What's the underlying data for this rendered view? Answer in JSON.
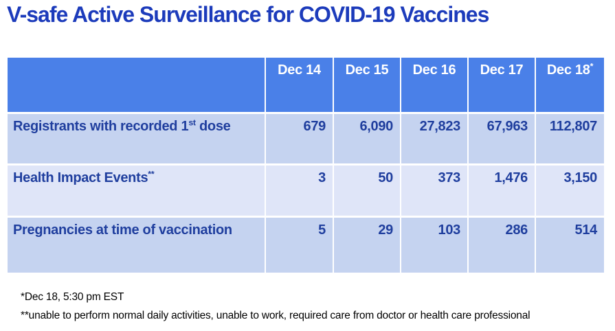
{
  "slide": {
    "title": "V-safe Active Surveillance for COVID-19 Vaccines"
  },
  "table": {
    "headers": [
      {
        "label": "Dec 14",
        "sup": ""
      },
      {
        "label": "Dec 15",
        "sup": ""
      },
      {
        "label": "Dec 16",
        "sup": ""
      },
      {
        "label": "Dec 17",
        "sup": ""
      },
      {
        "label": "Dec 18",
        "sup": "*"
      }
    ],
    "rows": [
      {
        "label": "Registrants with recorded 1",
        "label_sup": "st",
        "label_suffix": " dose",
        "values": [
          "679",
          "6,090",
          "27,823",
          "67,963",
          "112,807"
        ]
      },
      {
        "label": "Health Impact Events",
        "label_sup": "**",
        "label_suffix": "",
        "values": [
          "3",
          "50",
          "373",
          "1,476",
          "3,150"
        ]
      },
      {
        "label": "Pregnancies at time of vaccination",
        "label_sup": "",
        "label_suffix": "",
        "values": [
          "5",
          "29",
          "103",
          "286",
          "514"
        ]
      }
    ]
  },
  "footnotes": [
    "*Dec 18, 5:30 pm EST",
    "**unable to perform normal daily activities, unable to work, required care from doctor or health care professional"
  ],
  "colors": {
    "title_text": "#1c3bbb",
    "header_bg": "#4a80e8",
    "header_text": "#ffffff",
    "row_odd_bg": "#c5d3f0",
    "row_even_bg": "#dfe5f8",
    "cell_text": "#1f3e9e",
    "footnote_text": "#000000"
  }
}
